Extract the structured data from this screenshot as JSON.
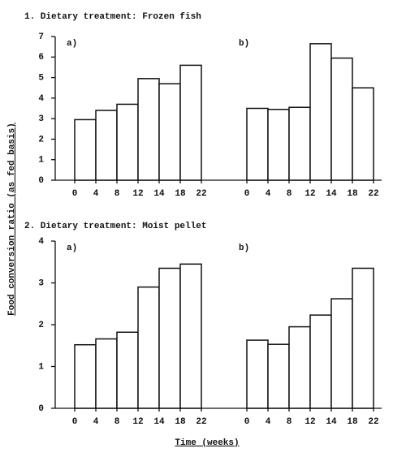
{
  "figure": {
    "ylabel": "Food conversion ratio (as fed basis)",
    "xlabel": "Time (weeks)"
  },
  "chart_data": [
    {
      "type": "histogram",
      "title": "1. Dietary treatment: Frozen fish",
      "ylim": [
        0,
        7
      ],
      "yticks": [
        0,
        1,
        2,
        3,
        4,
        5,
        6,
        7
      ],
      "panels": [
        {
          "label": "a)",
          "bins": [
            "0",
            "4",
            "8",
            "12",
            "14",
            "18",
            "22"
          ],
          "values": [
            2.95,
            3.4,
            3.7,
            4.95,
            4.7,
            5.6
          ]
        },
        {
          "label": "b)",
          "bins": [
            "0",
            "4",
            "8",
            "12",
            "14",
            "18",
            "22"
          ],
          "values": [
            3.5,
            3.45,
            3.55,
            6.65,
            5.95,
            4.5
          ]
        }
      ]
    },
    {
      "type": "histogram",
      "title": "2. Dietary treatment: Moist pellet",
      "ylim": [
        0,
        4
      ],
      "yticks": [
        0,
        1,
        2,
        3,
        4
      ],
      "panels": [
        {
          "label": "a)",
          "bins": [
            "0",
            "4",
            "8",
            "12",
            "14",
            "18",
            "22"
          ],
          "values": [
            1.52,
            1.66,
            1.82,
            2.9,
            3.35,
            3.45
          ]
        },
        {
          "label": "b)",
          "bins": [
            "0",
            "4",
            "8",
            "12",
            "14",
            "18",
            "22"
          ],
          "values": [
            1.63,
            1.53,
            1.95,
            2.23,
            2.62,
            3.35
          ]
        }
      ]
    }
  ]
}
